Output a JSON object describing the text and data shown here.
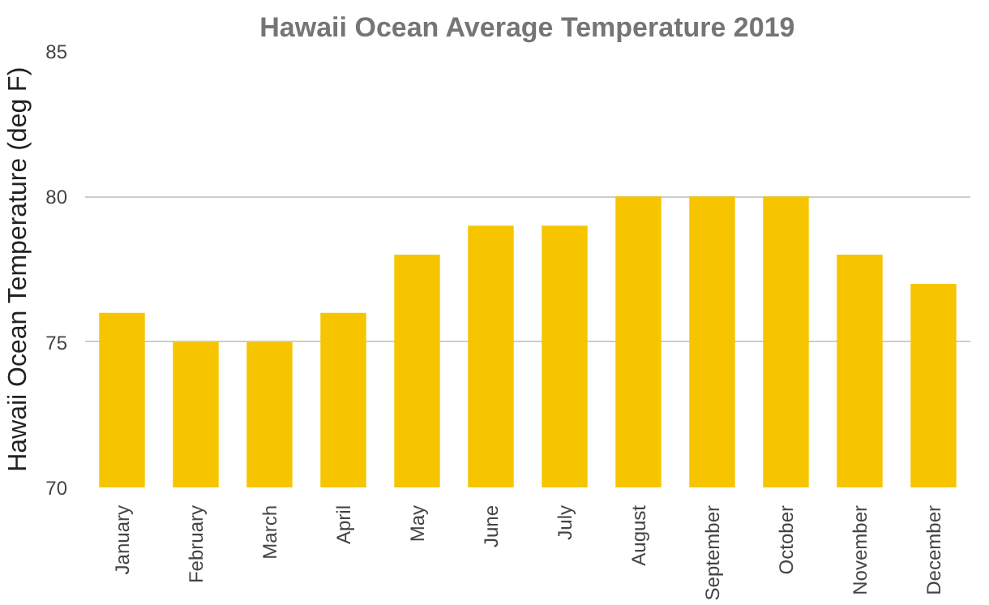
{
  "chart_data": {
    "type": "bar",
    "title": "Hawaii Ocean Average Temperature 2019",
    "ylabel": "Hawaii Ocean Temperature (deg F)",
    "categories": [
      "January",
      "February",
      "March",
      "April",
      "May",
      "June",
      "July",
      "August",
      "September",
      "October",
      "November",
      "December"
    ],
    "values": [
      76,
      75,
      75,
      76,
      78,
      79,
      79,
      80,
      80,
      80,
      78,
      77
    ],
    "color": "#f6c500",
    "ylim": [
      70,
      85
    ],
    "yticks": [
      70,
      75,
      80,
      85
    ],
    "grid": "y"
  }
}
